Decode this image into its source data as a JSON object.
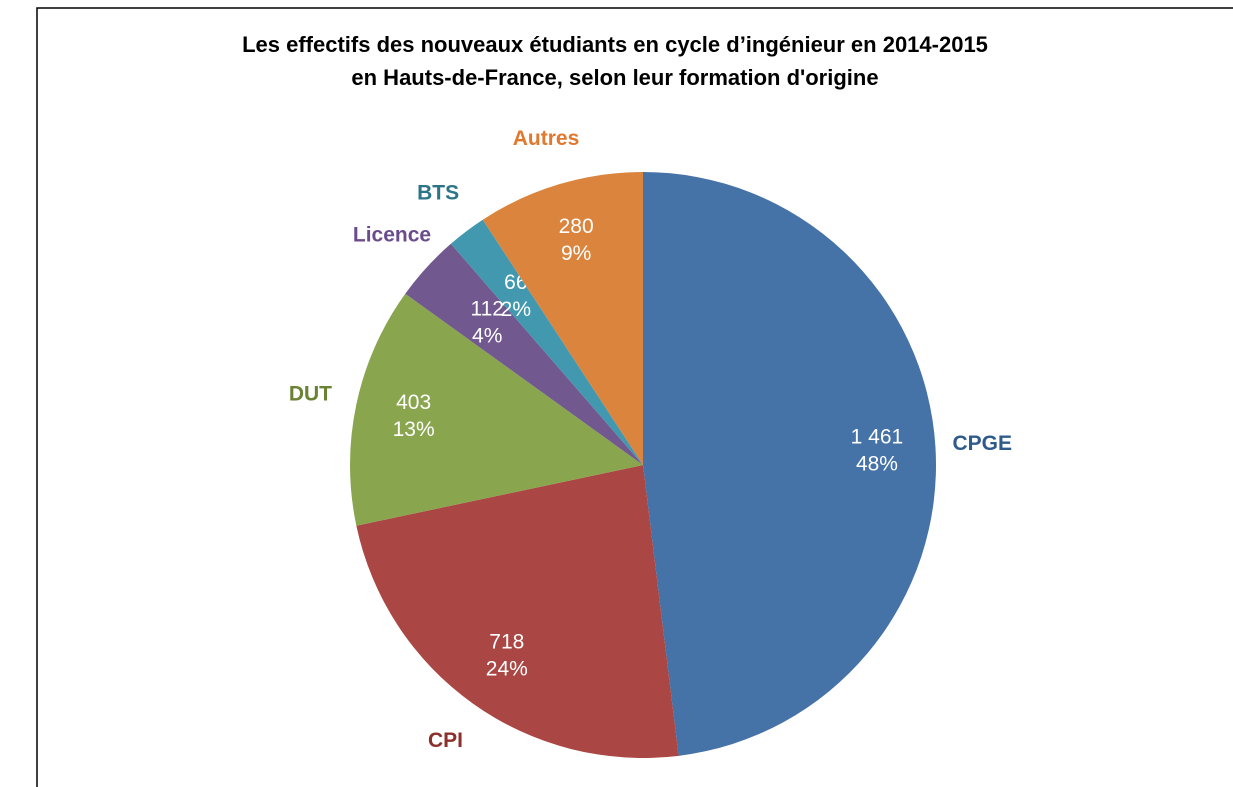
{
  "chart_data": {
    "type": "pie",
    "title": [
      "Les effectifs des nouveaux étudiants en cycle d’ingénieur  en 2014-2015",
      "en Hauts-de-France, selon leur formation d'origine"
    ],
    "categories": [
      "CPGE",
      "CPI",
      "DUT",
      "Licence",
      "BTS",
      "Autres"
    ],
    "values": [
      1461,
      718,
      403,
      112,
      66,
      280
    ],
    "value_labels": [
      "1 461",
      "718",
      "403",
      "112",
      "66",
      "280"
    ],
    "percent_labels": [
      "48%",
      "24%",
      "13%",
      "4%",
      "2%",
      "9%"
    ],
    "colors": [
      "#4572a7",
      "#aa4643",
      "#89a54e",
      "#71588f",
      "#4198af",
      "#db843d"
    ],
    "label_colors": [
      "#2f5b8c",
      "#8b302d",
      "#6a8234",
      "#6a4c8c",
      "#2d7487",
      "#e0782e"
    ]
  }
}
